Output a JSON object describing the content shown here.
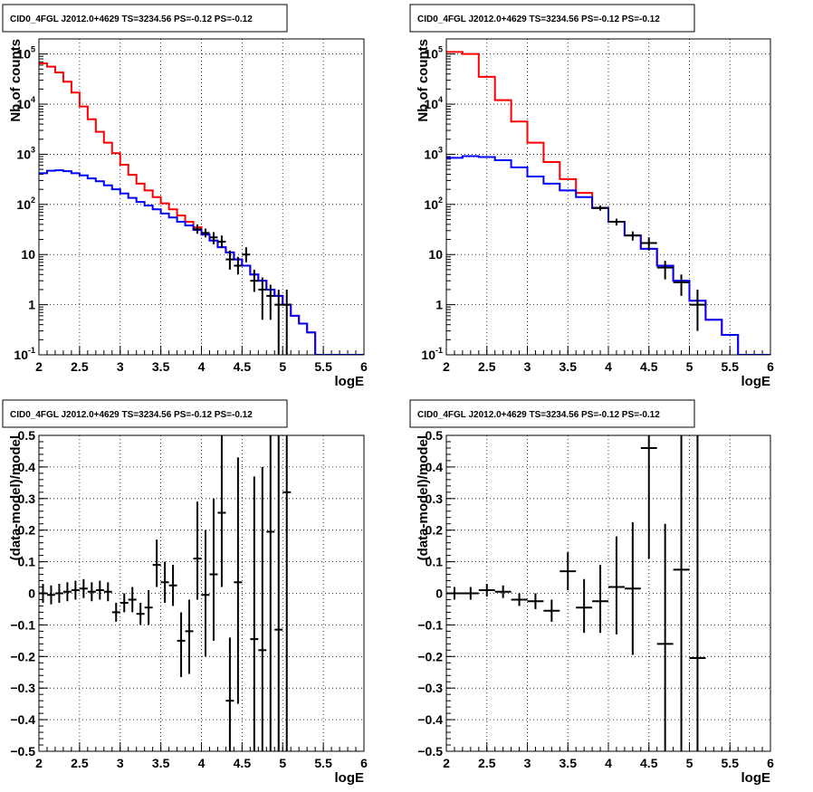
{
  "chart_data": [
    {
      "type": "line",
      "title": "CID0_4FGL J2012.0+4629 TS=3234.56 PS=-0.12 PS=-0.12",
      "xlabel": "logE",
      "ylabel": "Nb of counts",
      "yscale": "log",
      "xlim": [
        2,
        6
      ],
      "ylim": [
        0.1,
        200000
      ],
      "grid": true,
      "x_ticks": [
        "2",
        "2.5",
        "3",
        "3.5",
        "4",
        "4.5",
        "5",
        "5.5",
        "6"
      ],
      "y_ticks": [
        {
          "base": "10",
          "exp": "-1"
        },
        {
          "base": "1",
          "exp": ""
        },
        {
          "base": "10",
          "exp": ""
        },
        {
          "base": "10",
          "exp": "2"
        },
        {
          "base": "10",
          "exp": "3"
        },
        {
          "base": "10",
          "exp": "4"
        },
        {
          "base": "10",
          "exp": "5"
        }
      ],
      "bin_edges": [
        2.0,
        2.1,
        2.2,
        2.3,
        2.4,
        2.5,
        2.6,
        2.7,
        2.8,
        2.9,
        3.0,
        3.1,
        3.2,
        3.3,
        3.4,
        3.5,
        3.6,
        3.7,
        3.8,
        3.9,
        4.0,
        4.1,
        4.2,
        4.3,
        4.4,
        4.5,
        4.6,
        4.7,
        4.8,
        4.9,
        5.0,
        5.1,
        5.2,
        5.3,
        5.4,
        5.5,
        5.6,
        5.7,
        5.8,
        5.9,
        6.0
      ],
      "series": [
        {
          "color": "#ff0000",
          "values": [
            65000,
            56000,
            43000,
            28000,
            17000,
            9000,
            5000,
            2800,
            1700,
            1050,
            620,
            390,
            260,
            190,
            140,
            105,
            80,
            60,
            45,
            35,
            25,
            19,
            14,
            11,
            8,
            6,
            4,
            3,
            2,
            1.5,
            1,
            0.6,
            0.42,
            0.28,
            0.1,
            0.1,
            0.1,
            0.1,
            0.1,
            0.1
          ]
        },
        {
          "color": "#0000ff",
          "values": [
            420,
            470,
            480,
            460,
            420,
            380,
            330,
            290,
            240,
            200,
            165,
            135,
            112,
            95,
            80,
            66,
            55,
            45,
            38,
            31,
            25,
            19,
            14,
            11,
            8,
            6,
            4,
            3,
            2,
            1.5,
            1,
            0.6,
            0.42,
            0.28,
            0.1,
            0.1,
            0.1,
            0.1,
            0.1,
            0.1
          ]
        }
      ],
      "data_points": [
        {
          "x": 3.95,
          "y": 32,
          "lo": 26,
          "hi": 40
        },
        {
          "x": 4.05,
          "y": 27,
          "lo": 22,
          "hi": 33
        },
        {
          "x": 4.15,
          "y": 22,
          "lo": 16,
          "hi": 28
        },
        {
          "x": 4.25,
          "y": 18,
          "lo": 14,
          "hi": 24
        },
        {
          "x": 4.35,
          "y": 8,
          "lo": 5,
          "hi": 12
        },
        {
          "x": 4.45,
          "y": 6,
          "lo": 4,
          "hi": 9
        },
        {
          "x": 4.55,
          "y": 10,
          "lo": 7,
          "hi": 14
        },
        {
          "x": 4.65,
          "y": 3,
          "lo": 1.8,
          "hi": 5
        },
        {
          "x": 4.75,
          "y": 2,
          "lo": 0.5,
          "hi": 3.5
        },
        {
          "x": 4.85,
          "y": 1.5,
          "lo": 0.5,
          "hi": 2.5
        },
        {
          "x": 4.95,
          "y": 1,
          "lo": 0.1,
          "hi": 2
        },
        {
          "x": 5.05,
          "y": 1,
          "lo": 0.1,
          "hi": 2
        }
      ]
    },
    {
      "type": "line",
      "title": "CID0_4FGL J2012.0+4629 TS=3234.56 PS=-0.12 PS=-0.12",
      "xlabel": "logE",
      "ylabel": "Nb of counts",
      "yscale": "log",
      "xlim": [
        2,
        6
      ],
      "ylim": [
        0.1,
        200000
      ],
      "grid": true,
      "x_ticks": [
        "2",
        "2.5",
        "3",
        "3.5",
        "4",
        "4.5",
        "5",
        "5.5",
        "6"
      ],
      "y_ticks": [
        {
          "base": "10",
          "exp": "-1"
        },
        {
          "base": "1",
          "exp": ""
        },
        {
          "base": "10",
          "exp": ""
        },
        {
          "base": "10",
          "exp": "2"
        },
        {
          "base": "10",
          "exp": "3"
        },
        {
          "base": "10",
          "exp": "4"
        },
        {
          "base": "10",
          "exp": "5"
        }
      ],
      "bin_edges": [
        2.0,
        2.2,
        2.4,
        2.6,
        2.8,
        3.0,
        3.2,
        3.4,
        3.6,
        3.8,
        4.0,
        4.2,
        4.4,
        4.6,
        4.8,
        5.0,
        5.2,
        5.4,
        5.6,
        5.8,
        6.0
      ],
      "series": [
        {
          "color": "#ff0000",
          "values": [
            110000,
            100000,
            35000,
            12000,
            4500,
            1700,
            700,
            320,
            170,
            85,
            45,
            24,
            13,
            6,
            3,
            1.2,
            0.5,
            0.25,
            0.1,
            0.1
          ]
        },
        {
          "color": "#0000ff",
          "values": [
            850,
            920,
            880,
            760,
            550,
            360,
            260,
            190,
            140,
            85,
            45,
            24,
            13,
            6,
            3,
            1.2,
            0.5,
            0.25,
            0.1,
            0.1
          ]
        }
      ],
      "data_points": [
        {
          "x": 3.9,
          "y": 85,
          "lo": 75,
          "hi": 95
        },
        {
          "x": 4.1,
          "y": 45,
          "lo": 38,
          "hi": 52
        },
        {
          "x": 4.3,
          "y": 24,
          "lo": 19,
          "hi": 29
        },
        {
          "x": 4.5,
          "y": 17,
          "lo": 12,
          "hi": 22
        },
        {
          "x": 4.7,
          "y": 5.5,
          "lo": 3.2,
          "hi": 7.5
        },
        {
          "x": 4.9,
          "y": 2.8,
          "lo": 1.5,
          "hi": 4
        },
        {
          "x": 5.1,
          "y": 1,
          "lo": 0.3,
          "hi": 2
        }
      ]
    },
    {
      "type": "scatter",
      "title": "CID0_4FGL J2012.0+4629 TS=3234.56 PS=-0.12 PS=-0.12",
      "xlabel": "logE",
      "ylabel": "(data-model)/model",
      "yscale": "linear",
      "xlim": [
        2,
        6
      ],
      "ylim": [
        -0.5,
        0.5
      ],
      "grid": true,
      "x_ticks": [
        "2",
        "2.5",
        "3",
        "3.5",
        "4",
        "4.5",
        "5",
        "5.5",
        "6"
      ],
      "y_ticks": [
        "−0.5",
        "−0.4",
        "−0.3",
        "−0.2",
        "−0.1",
        "0",
        "0.1",
        "0.2",
        "0.3",
        "0.4",
        "0.5"
      ],
      "y_tick_values": [
        -0.5,
        -0.4,
        -0.3,
        -0.2,
        -0.1,
        0,
        0.1,
        0.2,
        0.3,
        0.4,
        0.5
      ],
      "data_points": [
        {
          "x": 2.05,
          "y": 0.0,
          "lo": -0.03,
          "hi": 0.03
        },
        {
          "x": 2.15,
          "y": -0.005,
          "lo": -0.035,
          "hi": 0.025
        },
        {
          "x": 2.25,
          "y": 0.0,
          "lo": -0.03,
          "hi": 0.03
        },
        {
          "x": 2.35,
          "y": 0.005,
          "lo": -0.025,
          "hi": 0.035
        },
        {
          "x": 2.45,
          "y": 0.01,
          "lo": -0.02,
          "hi": 0.04
        },
        {
          "x": 2.55,
          "y": 0.015,
          "lo": -0.015,
          "hi": 0.045
        },
        {
          "x": 2.65,
          "y": 0.005,
          "lo": -0.025,
          "hi": 0.035
        },
        {
          "x": 2.75,
          "y": 0.01,
          "lo": -0.02,
          "hi": 0.04
        },
        {
          "x": 2.85,
          "y": 0.005,
          "lo": -0.025,
          "hi": 0.035
        },
        {
          "x": 2.95,
          "y": -0.06,
          "lo": -0.09,
          "hi": -0.03
        },
        {
          "x": 3.05,
          "y": -0.03,
          "lo": -0.06,
          "hi": 0.0
        },
        {
          "x": 3.15,
          "y": -0.02,
          "lo": -0.06,
          "hi": 0.02
        },
        {
          "x": 3.25,
          "y": -0.065,
          "lo": -0.1,
          "hi": -0.03
        },
        {
          "x": 3.35,
          "y": -0.045,
          "lo": -0.1,
          "hi": 0.01
        },
        {
          "x": 3.45,
          "y": 0.09,
          "lo": 0.02,
          "hi": 0.17
        },
        {
          "x": 3.55,
          "y": 0.035,
          "lo": -0.03,
          "hi": 0.1
        },
        {
          "x": 3.65,
          "y": 0.025,
          "lo": -0.04,
          "hi": 0.09
        },
        {
          "x": 3.75,
          "y": -0.15,
          "lo": -0.265,
          "hi": -0.06
        },
        {
          "x": 3.85,
          "y": -0.12,
          "lo": -0.255,
          "hi": -0.02
        },
        {
          "x": 3.95,
          "y": 0.11,
          "lo": -0.02,
          "hi": 0.29
        },
        {
          "x": 4.05,
          "y": -0.005,
          "lo": -0.2,
          "hi": 0.2
        },
        {
          "x": 4.15,
          "y": 0.06,
          "lo": -0.15,
          "hi": 0.3
        },
        {
          "x": 4.25,
          "y": 0.255,
          "lo": 0.02,
          "hi": 0.5
        },
        {
          "x": 4.35,
          "y": -0.34,
          "lo": -0.5,
          "hi": -0.14
        },
        {
          "x": 4.45,
          "y": 0.035,
          "lo": -0.35,
          "hi": 0.43
        },
        {
          "x": 4.65,
          "y": -0.145,
          "lo": -0.5,
          "hi": 0.37
        },
        {
          "x": 4.75,
          "y": -0.18,
          "lo": -0.5,
          "hi": 0.4
        },
        {
          "x": 4.85,
          "y": 0.195,
          "lo": -0.5,
          "hi": 0.5
        },
        {
          "x": 4.95,
          "y": -0.115,
          "lo": -0.5,
          "hi": 0.5
        },
        {
          "x": 5.05,
          "y": 0.32,
          "lo": -0.5,
          "hi": 0.5
        }
      ]
    },
    {
      "type": "scatter",
      "title": "CID0_4FGL J2012.0+4629 TS=3234.56 PS=-0.12 PS=-0.12",
      "xlabel": "logE",
      "ylabel": "(data-model)/model",
      "yscale": "linear",
      "xlim": [
        2,
        6
      ],
      "ylim": [
        -0.5,
        0.5
      ],
      "grid": true,
      "x_ticks": [
        "2",
        "2.5",
        "3",
        "3.5",
        "4",
        "4.5",
        "5",
        "5.5",
        "6"
      ],
      "y_ticks": [
        "−0.5",
        "−0.4",
        "−0.3",
        "−0.2",
        "−0.1",
        "0",
        "0.1",
        "0.2",
        "0.3",
        "0.4",
        "0.5"
      ],
      "y_tick_values": [
        -0.5,
        -0.4,
        -0.3,
        -0.2,
        -0.1,
        0,
        0.1,
        0.2,
        0.3,
        0.4,
        0.5
      ],
      "data_points": [
        {
          "x": 2.1,
          "y": 0.0,
          "lo": -0.02,
          "hi": 0.02
        },
        {
          "x": 2.3,
          "y": 0.0,
          "lo": -0.02,
          "hi": 0.02
        },
        {
          "x": 2.5,
          "y": 0.01,
          "lo": -0.01,
          "hi": 0.03
        },
        {
          "x": 2.7,
          "y": 0.005,
          "lo": -0.015,
          "hi": 0.025
        },
        {
          "x": 2.9,
          "y": -0.02,
          "lo": -0.04,
          "hi": 0.0
        },
        {
          "x": 3.1,
          "y": -0.025,
          "lo": -0.05,
          "hi": 0.0
        },
        {
          "x": 3.3,
          "y": -0.055,
          "lo": -0.09,
          "hi": -0.02
        },
        {
          "x": 3.5,
          "y": 0.07,
          "lo": 0.01,
          "hi": 0.13
        },
        {
          "x": 3.7,
          "y": -0.045,
          "lo": -0.125,
          "hi": 0.045
        },
        {
          "x": 3.9,
          "y": -0.025,
          "lo": -0.125,
          "hi": 0.09
        },
        {
          "x": 4.1,
          "y": 0.02,
          "lo": -0.13,
          "hi": 0.18
        },
        {
          "x": 4.3,
          "y": 0.015,
          "lo": -0.195,
          "hi": 0.225
        },
        {
          "x": 4.5,
          "y": 0.46,
          "lo": 0.11,
          "hi": 0.5
        },
        {
          "x": 4.7,
          "y": -0.16,
          "lo": -0.5,
          "hi": 0.22
        },
        {
          "x": 4.9,
          "y": 0.075,
          "lo": -0.5,
          "hi": 0.5
        },
        {
          "x": 5.1,
          "y": -0.205,
          "lo": -0.5,
          "hi": 0.5
        }
      ]
    }
  ]
}
